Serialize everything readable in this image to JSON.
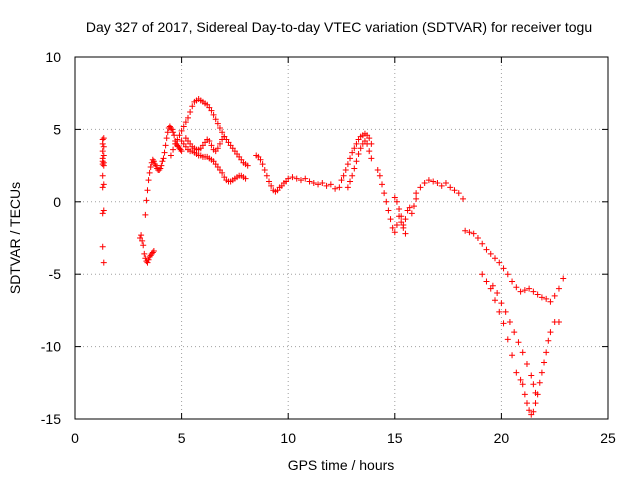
{
  "chart_data": {
    "type": "scatter",
    "title": "Day 327 of 2017, Sidereal Day-to-day VTEC variation (SDTVAR) for receiver togu",
    "xlabel": "GPS time / hours",
    "ylabel": "SDTVAR / TECUs",
    "xlim": [
      0,
      25
    ],
    "ylim": [
      -15,
      10
    ],
    "xticks": [
      0,
      5,
      10,
      15,
      20,
      25
    ],
    "yticks": [
      -15,
      -10,
      -5,
      0,
      5,
      10
    ],
    "xtick_labels": [
      "0",
      "5",
      "10",
      "15",
      "20",
      "25"
    ],
    "ytick_labels": [
      "-15",
      "-10",
      "-5",
      "0",
      "5",
      "10"
    ],
    "grid": true,
    "marker": "+",
    "color": "#ff0000",
    "series": [
      {
        "name": "SDTVAR",
        "x": [
          1.3,
          1.3,
          1.3,
          1.3,
          1.3,
          1.3,
          1.3,
          1.3,
          1.3,
          1.3,
          1.35,
          1.35,
          1.35,
          1.35,
          1.35,
          1.35,
          1.35,
          1.35,
          3.05,
          3.1,
          3.15,
          3.2,
          3.25,
          3.3,
          3.35,
          3.4,
          3.45,
          3.5,
          3.55,
          3.6,
          3.65,
          3.7,
          3.3,
          3.35,
          3.4,
          3.45,
          3.5,
          3.55,
          3.6,
          3.65,
          3.7,
          3.75,
          3.8,
          3.85,
          3.9,
          3.95,
          4.0,
          4.05,
          4.1,
          4.15,
          4.2,
          4.25,
          4.3,
          4.35,
          4.4,
          4.45,
          4.5,
          4.55,
          4.6,
          4.65,
          4.7,
          4.75,
          4.8,
          4.85,
          4.9,
          4.95,
          5.0,
          4.5,
          4.6,
          4.7,
          4.8,
          4.9,
          5.0,
          5.1,
          5.2,
          5.3,
          5.4,
          5.5,
          5.6,
          5.7,
          5.8,
          5.9,
          6.0,
          6.1,
          6.2,
          6.3,
          6.4,
          6.5,
          6.6,
          6.7,
          6.8,
          6.9,
          7.0,
          5.0,
          5.1,
          5.2,
          5.3,
          5.4,
          5.5,
          5.6,
          5.7,
          5.8,
          5.9,
          6.0,
          6.1,
          6.2,
          6.3,
          6.4,
          6.5,
          6.6,
          6.7,
          6.8,
          6.9,
          7.0,
          7.1,
          7.2,
          7.3,
          7.4,
          7.5,
          7.6,
          7.7,
          7.8,
          7.9,
          8.0,
          5.2,
          5.3,
          5.4,
          5.5,
          5.6,
          5.7,
          5.8,
          5.9,
          6.0,
          6.1,
          6.2,
          6.3,
          6.4,
          6.5,
          6.6,
          6.7,
          6.8,
          6.9,
          7.0,
          7.1,
          7.2,
          7.3,
          7.4,
          7.5,
          7.6,
          7.7,
          7.8,
          7.9,
          8.0,
          8.1,
          8.5,
          8.6,
          8.7,
          8.8,
          8.9,
          9.0,
          9.1,
          9.2,
          9.3,
          9.4,
          9.5,
          9.6,
          9.7,
          9.8,
          9.9,
          10.0,
          10.2,
          10.4,
          10.6,
          10.8,
          11.0,
          11.2,
          11.4,
          11.6,
          11.8,
          12.0,
          12.2,
          12.4,
          12.5,
          12.6,
          12.7,
          12.8,
          12.9,
          13.0,
          13.1,
          13.2,
          13.3,
          13.4,
          13.5,
          13.6,
          13.7,
          13.8,
          13.9,
          12.8,
          12.9,
          13.0,
          13.1,
          13.2,
          13.3,
          13.4,
          13.5,
          13.6,
          13.7,
          13.8,
          13.9,
          14.2,
          14.3,
          14.4,
          14.5,
          14.6,
          14.7,
          14.8,
          14.9,
          15.0,
          15.1,
          15.2,
          15.3,
          15.4,
          15.5,
          15.6,
          15.7,
          15.8,
          15.9,
          16.0,
          15.0,
          15.1,
          15.2,
          15.3,
          15.4,
          15.5,
          16.0,
          16.2,
          16.4,
          16.6,
          16.8,
          17.0,
          17.2,
          17.4,
          17.6,
          17.8,
          18.0,
          18.2,
          18.3,
          18.5,
          18.7,
          18.9,
          19.1,
          19.3,
          19.5,
          19.7,
          19.9,
          20.1,
          20.3,
          20.5,
          20.7,
          20.9,
          21.1,
          21.3,
          21.5,
          21.7,
          21.9,
          22.1,
          22.3,
          22.5,
          22.7,
          22.9,
          19.1,
          19.3,
          19.5,
          19.7,
          19.9,
          20.1,
          20.3,
          20.5,
          20.7,
          20.9,
          21.0,
          21.1,
          21.2,
          21.3,
          21.4,
          21.5,
          21.6,
          21.7,
          21.8,
          21.9,
          22.0,
          22.1,
          22.2,
          22.3,
          22.5,
          22.7,
          19.6,
          19.8,
          20.0,
          20.2,
          20.4,
          20.6,
          20.8,
          21.0,
          21.2,
          21.4,
          21.5,
          21.6
        ],
        "y": [
          4.3,
          4.0,
          3.5,
          3.0,
          2.8,
          2.6,
          1.8,
          1.0,
          -0.8,
          -3.1,
          4.4,
          3.8,
          3.2,
          2.7,
          2.5,
          1.2,
          -0.6,
          -4.2,
          -2.5,
          -2.3,
          -2.7,
          -3.0,
          -3.6,
          -3.9,
          -4.1,
          -4.2,
          -4.0,
          -3.8,
          -3.7,
          -3.6,
          -3.5,
          -3.4,
          -0.9,
          0.1,
          0.8,
          1.5,
          2.0,
          2.4,
          2.7,
          2.9,
          2.8,
          2.6,
          2.5,
          2.3,
          2.2,
          2.2,
          2.3,
          2.5,
          2.8,
          3.0,
          3.4,
          3.9,
          4.4,
          4.8,
          5.1,
          5.2,
          5.1,
          5.0,
          4.8,
          4.6,
          4.2,
          4.0,
          3.9,
          3.8,
          3.7,
          3.6,
          3.5,
          3.2,
          3.6,
          4.0,
          4.3,
          4.6,
          4.9,
          5.2,
          5.5,
          5.8,
          6.2,
          6.6,
          6.9,
          7.0,
          7.1,
          7.0,
          6.9,
          6.8,
          6.7,
          6.5,
          6.3,
          6.0,
          5.7,
          5.4,
          5.1,
          4.8,
          4.5,
          4.2,
          4.0,
          3.8,
          3.6,
          3.5,
          3.5,
          3.4,
          3.3,
          3.2,
          3.2,
          3.1,
          3.1,
          3.1,
          3.0,
          2.9,
          2.8,
          2.6,
          2.4,
          2.2,
          2.0,
          1.7,
          1.5,
          1.4,
          1.4,
          1.5,
          1.6,
          1.7,
          1.8,
          1.8,
          1.7,
          1.6,
          4.4,
          4.2,
          4.0,
          3.8,
          3.7,
          3.6,
          3.6,
          3.7,
          3.9,
          4.1,
          4.3,
          4.2,
          3.9,
          3.6,
          3.5,
          3.7,
          4.0,
          4.3,
          4.5,
          4.3,
          4.1,
          3.9,
          3.7,
          3.5,
          3.3,
          3.1,
          2.9,
          2.7,
          2.6,
          2.5,
          3.2,
          3.1,
          2.9,
          2.6,
          2.2,
          1.8,
          1.4,
          1.1,
          0.8,
          0.7,
          0.8,
          1.0,
          1.1,
          1.3,
          1.4,
          1.6,
          1.7,
          1.6,
          1.5,
          1.6,
          1.4,
          1.3,
          1.2,
          1.3,
          1.1,
          1.2,
          0.9,
          1.0,
          1.5,
          1.8,
          2.2,
          2.6,
          3.0,
          3.4,
          3.7,
          4.0,
          4.3,
          4.5,
          4.6,
          4.7,
          4.6,
          4.4,
          4.0,
          1.0,
          1.4,
          1.8,
          2.3,
          2.8,
          3.3,
          3.7,
          4.0,
          4.2,
          4.0,
          3.5,
          3.0,
          2.2,
          1.8,
          1.2,
          0.6,
          0.0,
          -0.6,
          -1.2,
          -1.8,
          -2.1,
          -1.6,
          -1.0,
          -1.4,
          -1.8,
          -1.2,
          -0.6,
          -0.4,
          -0.8,
          -0.3,
          0.2,
          0.3,
          0.0,
          -0.5,
          -1.0,
          -1.6,
          -2.2,
          0.6,
          1.0,
          1.3,
          1.5,
          1.4,
          1.3,
          1.1,
          1.3,
          1.0,
          0.8,
          0.6,
          0.2,
          -2.0,
          -2.1,
          -2.2,
          -2.5,
          -2.9,
          -3.3,
          -3.6,
          -3.9,
          -4.2,
          -4.6,
          -5.0,
          -5.5,
          -5.9,
          -6.2,
          -6.1,
          -6.0,
          -6.2,
          -6.4,
          -6.6,
          -6.7,
          -6.9,
          -6.5,
          -6.0,
          -5.3,
          -5.0,
          -5.5,
          -6.0,
          -6.8,
          -7.6,
          -8.4,
          -9.5,
          -10.6,
          -11.8,
          -12.3,
          -12.6,
          -13.3,
          -13.9,
          -14.4,
          -14.7,
          -14.5,
          -13.9,
          -13.3,
          -12.5,
          -11.8,
          -11.1,
          -10.4,
          -9.6,
          -9.0,
          -8.3,
          -8.3,
          -5.8,
          -6.3,
          -7.0,
          -7.6,
          -8.3,
          -9.0,
          -9.7,
          -10.4,
          -11.2,
          -12.0,
          -12.6,
          -13.2
        ]
      }
    ]
  }
}
